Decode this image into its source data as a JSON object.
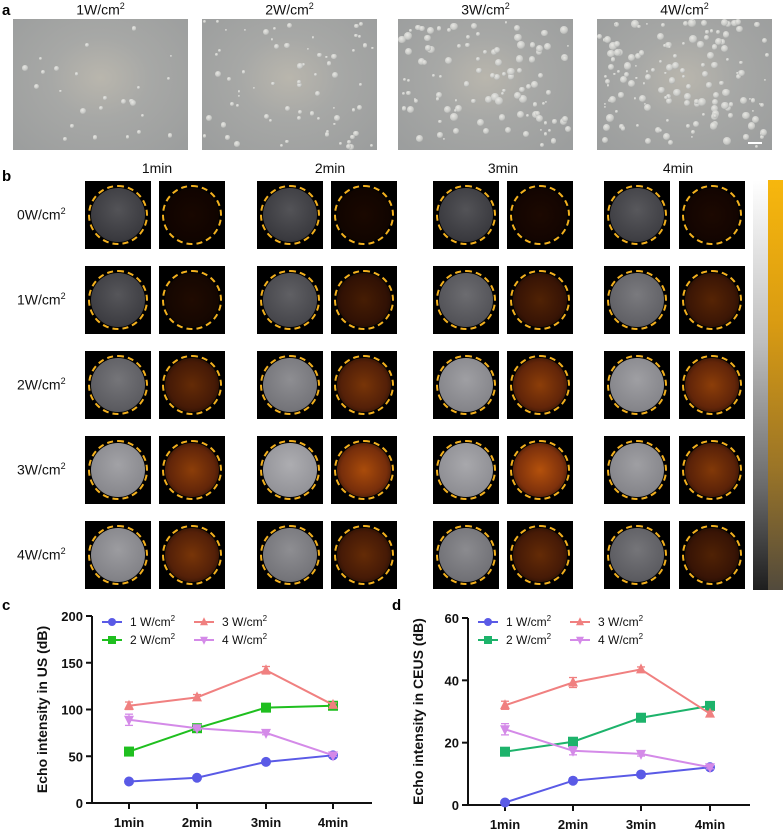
{
  "panel_a": {
    "label": "a",
    "images": [
      {
        "title_main": "1W/cm",
        "title_sup": "2",
        "bubble_density": 25
      },
      {
        "title_main": "2W/cm",
        "title_sup": "2",
        "bubble_density": 70
      },
      {
        "title_main": "3W/cm",
        "title_sup": "2",
        "bubble_density": 110
      },
      {
        "title_main": "4W/cm",
        "title_sup": "2",
        "bubble_density": 150
      }
    ],
    "scale_bar": true
  },
  "panel_b": {
    "label": "b",
    "columns": [
      "1min",
      "2min",
      "3min",
      "4min"
    ],
    "rows": [
      {
        "label_main": "0W/cm",
        "label_sup": "2",
        "us_brightness": [
          0.25,
          0.25,
          0.25,
          0.28
        ],
        "ceus_intensity": [
          0.02,
          0.03,
          0.04,
          0.04
        ]
      },
      {
        "label_main": "1W/cm",
        "label_sup": "2",
        "us_brightness": [
          0.27,
          0.33,
          0.4,
          0.48
        ],
        "ceus_intensity": [
          0.06,
          0.25,
          0.3,
          0.33
        ]
      },
      {
        "label_main": "2W/cm",
        "label_sup": "2",
        "us_brightness": [
          0.45,
          0.6,
          0.7,
          0.7
        ],
        "ceus_intensity": [
          0.4,
          0.5,
          0.6,
          0.6
        ]
      },
      {
        "label_main": "3W/cm",
        "label_sup": "2",
        "us_brightness": [
          0.72,
          0.78,
          0.75,
          0.7
        ],
        "ceus_intensity": [
          0.6,
          0.75,
          0.8,
          0.55
        ]
      },
      {
        "label_main": "4W/cm",
        "label_sup": "2",
        "us_brightness": [
          0.68,
          0.6,
          0.58,
          0.45
        ],
        "ceus_intensity": [
          0.5,
          0.4,
          0.4,
          0.3
        ]
      }
    ],
    "colorbar": {
      "grey_top": "#ffffff",
      "grey_bottom": "#1e1e1e",
      "gold_top": "#f7b70d",
      "gold_bottom": "#524a3c"
    },
    "ring_color": "#f2b01e"
  },
  "chart_data": [
    {
      "panel": "c",
      "type": "line",
      "title": "",
      "xlabel": "",
      "ylabel": "Echo intensity in US (dB)",
      "categories": [
        "1min",
        "2min",
        "3min",
        "4min"
      ],
      "ylim": [
        0,
        200
      ],
      "yticks": [
        0,
        50,
        100,
        150,
        200
      ],
      "grid": false,
      "legend_position": "top-left",
      "series": [
        {
          "name": "1 W/cm2",
          "label_main": "1 W/cm",
          "label_sup": "2",
          "color": "#5a5ae6",
          "marker": "circle",
          "values": [
            23,
            27,
            44,
            51
          ],
          "errors": [
            1,
            1,
            2,
            1
          ]
        },
        {
          "name": "2 W/cm2",
          "label_main": "2 W/cm",
          "label_sup": "2",
          "color": "#1fbf1f",
          "marker": "square",
          "values": [
            55,
            80,
            102,
            104
          ],
          "errors": [
            2,
            2,
            2,
            2
          ]
        },
        {
          "name": "3 W/cm2",
          "label_main": "3 W/cm",
          "label_sup": "2",
          "color": "#f08080",
          "marker": "triangle-up",
          "values": [
            104,
            113,
            142,
            105
          ],
          "errors": [
            4,
            3,
            4,
            2
          ]
        },
        {
          "name": "4 W/cm2",
          "label_main": "4 W/cm",
          "label_sup": "2",
          "color": "#d48ae8",
          "marker": "triangle-down",
          "values": [
            89,
            80,
            75,
            51
          ],
          "errors": [
            6,
            2,
            2,
            1
          ]
        }
      ]
    },
    {
      "panel": "d",
      "type": "line",
      "title": "",
      "xlabel": "",
      "ylabel": "Echo intensity in CEUS (dB)",
      "categories": [
        "1min",
        "2min",
        "3min",
        "4min"
      ],
      "ylim": [
        0,
        60
      ],
      "yticks": [
        0,
        20,
        40,
        60
      ],
      "grid": false,
      "legend_position": "top-left",
      "series": [
        {
          "name": "1 W/cm2",
          "label_main": "1 W/cm",
          "label_sup": "2",
          "color": "#5a5ae6",
          "marker": "circle",
          "values": [
            0.8,
            7.8,
            9.8,
            12.1
          ],
          "errors": [
            0.3,
            0.5,
            0.6,
            0.5
          ]
        },
        {
          "name": "2 W/cm2",
          "label_main": "2 W/cm",
          "label_sup": "2",
          "color": "#1db36b",
          "marker": "square",
          "values": [
            17.1,
            20.3,
            28.0,
            31.8
          ],
          "errors": [
            0.6,
            0.8,
            0.7,
            0.6
          ]
        },
        {
          "name": "3 W/cm2",
          "label_main": "3 W/cm",
          "label_sup": "2",
          "color": "#f08080",
          "marker": "triangle-up",
          "values": [
            32.0,
            39.3,
            43.5,
            29.3
          ],
          "errors": [
            1.3,
            1.6,
            0.8,
            0.8
          ]
        },
        {
          "name": "4 W/cm2",
          "label_main": "4 W/cm",
          "label_sup": "2",
          "color": "#d48ae8",
          "marker": "triangle-down",
          "values": [
            24.3,
            17.4,
            16.4,
            12.1
          ],
          "errors": [
            1.8,
            1.3,
            0.7,
            0.5
          ]
        }
      ]
    }
  ]
}
